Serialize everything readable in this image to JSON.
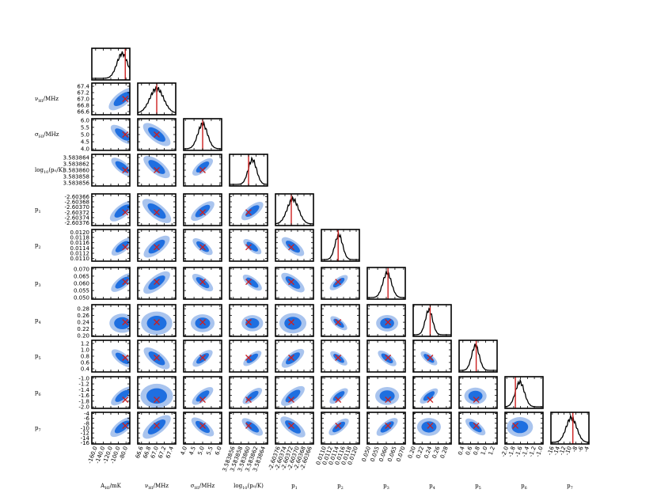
{
  "chart_data": {
    "type": "corner",
    "parameters": [
      {
        "label": "A_{HI}/mK",
        "label_main": "A",
        "label_sub": "HI",
        "label_tail": "/mK",
        "ticks": [
          "-160.0",
          "-140.0",
          "-120.0",
          "-100.0",
          "-80.0"
        ],
        "range": [
          -170,
          -70
        ],
        "truth": -82,
        "mean": -90,
        "sd": 14
      },
      {
        "label": "ν_{HI}/MHz",
        "label_main": "ν",
        "label_sub": "HI",
        "label_tail": "/MHz",
        "ticks": [
          "66.6",
          "66.8",
          "67.0",
          "67.2",
          "67.4"
        ],
        "range": [
          66.5,
          67.5
        ],
        "truth": 67.0,
        "mean": 67.0,
        "sd": 0.18
      },
      {
        "label": "σ_{HI}/MHz",
        "label_main": "σ",
        "label_sub": "HI",
        "label_tail": "/MHz",
        "ticks": [
          "4.0",
          "4.5",
          "5.0",
          "5.5",
          "6.0"
        ],
        "range": [
          3.9,
          6.1
        ],
        "truth": 5.0,
        "mean": 5.0,
        "sd": 0.28
      },
      {
        "label": "log_{10}(p_0/K)",
        "label_main": "log",
        "label_sub": "10",
        "label_tail": "(p₀/K)",
        "ticks": [
          "3.583856",
          "3.583858",
          "3.583860",
          "3.583862",
          "3.583864"
        ],
        "range": [
          3.583855,
          3.583865
        ],
        "truth": 3.58386,
        "mean": 3.583861,
        "sd": 1.1e-06
      },
      {
        "label": "p_1",
        "label_main": "p",
        "label_sub": "1",
        "label_tail": "",
        "ticks": [
          "-2.60376",
          "-2.60374",
          "-2.60372",
          "-2.60370",
          "-2.60368",
          "-2.60366"
        ],
        "range": [
          -2.60377,
          -2.60365
        ],
        "truth": -2.60372,
        "mean": -2.603715,
        "sd": 1.8e-05
      },
      {
        "label": "p_2",
        "label_main": "p",
        "label_sub": "2",
        "label_tail": "",
        "ticks": [
          "0.0110",
          "0.0112",
          "0.0114",
          "0.0116",
          "0.0118",
          "0.0120"
        ],
        "range": [
          0.0109,
          0.0121
        ],
        "truth": 0.01143,
        "mean": 0.01145,
        "sd": 0.00012
      },
      {
        "label": "p_3",
        "label_main": "p",
        "label_sub": "3",
        "label_tail": "",
        "ticks": [
          "0.050",
          "0.055",
          "0.060",
          "0.065",
          "0.070"
        ],
        "range": [
          0.049,
          0.071
        ],
        "truth": 0.061,
        "mean": 0.0605,
        "sd": 0.0025
      },
      {
        "label": "p_4",
        "label_main": "p",
        "label_sub": "4",
        "label_tail": "",
        "ticks": [
          "0.20",
          "0.22",
          "0.24",
          "0.26",
          "0.28"
        ],
        "range": [
          0.198,
          0.292
        ],
        "truth": 0.24,
        "mean": 0.237,
        "sd": 0.009
      },
      {
        "label": "p_5",
        "label_main": "p",
        "label_sub": "5",
        "label_tail": "",
        "ticks": [
          "0.4",
          "0.6",
          "0.8",
          "1.0",
          "1.2"
        ],
        "range": [
          0.3,
          1.3
        ],
        "truth": 0.75,
        "mean": 0.73,
        "sd": 0.1
      },
      {
        "label": "p_6",
        "label_main": "p",
        "label_sub": "6",
        "label_tail": "",
        "ticks": [
          "-2.0",
          "-1.8",
          "-1.6",
          "-1.4",
          "-1.2",
          "-1.0"
        ],
        "range": [
          -2.05,
          -0.95
        ],
        "truth": -1.75,
        "mean": -1.62,
        "sd": 0.13
      },
      {
        "label": "p_7",
        "label_main": "p",
        "label_sub": "7",
        "label_tail": "",
        "ticks": [
          "-16",
          "-14",
          "-12",
          "-10",
          "-8",
          "-6",
          "-4"
        ],
        "range": [
          -16.5,
          -3.5
        ],
        "truth": -9.0,
        "mean": -9.5,
        "sd": 1.8
      }
    ],
    "correlation_sign": [
      [
        0,
        0,
        0,
        0,
        0,
        0,
        0,
        0,
        0,
        0,
        0
      ],
      [
        1,
        0,
        0,
        0,
        0,
        0,
        0,
        0,
        0,
        0,
        0
      ],
      [
        -1,
        -1,
        0,
        0,
        0,
        0,
        0,
        0,
        0,
        0,
        0
      ],
      [
        -1,
        -1,
        1,
        0,
        0,
        0,
        0,
        0,
        0,
        0,
        0
      ],
      [
        1,
        -1,
        1,
        1,
        0,
        0,
        0,
        0,
        0,
        0,
        0
      ],
      [
        1,
        1,
        -1,
        -1,
        -1,
        0,
        0,
        0,
        0,
        0,
        0
      ],
      [
        1,
        1,
        -1,
        -1,
        -1,
        1,
        0,
        0,
        0,
        0,
        0
      ],
      [
        0,
        0,
        0,
        0,
        0,
        -1,
        0,
        0,
        0,
        0,
        0
      ],
      [
        -1,
        -1,
        1,
        1,
        1,
        -1,
        -1,
        -1,
        0,
        0,
        0
      ],
      [
        1,
        0,
        1,
        1,
        1,
        1,
        0,
        1,
        0,
        0,
        0
      ],
      [
        1,
        1,
        -1,
        -1,
        -1,
        1,
        1,
        0,
        -1,
        0,
        0
      ]
    ],
    "colors": {
      "contour_inner": "#1f6fe0",
      "contour_outer": "#a9c4ee",
      "truth": "#cc1f1f",
      "hist": "#000000"
    },
    "grid": false,
    "legend": "none"
  }
}
